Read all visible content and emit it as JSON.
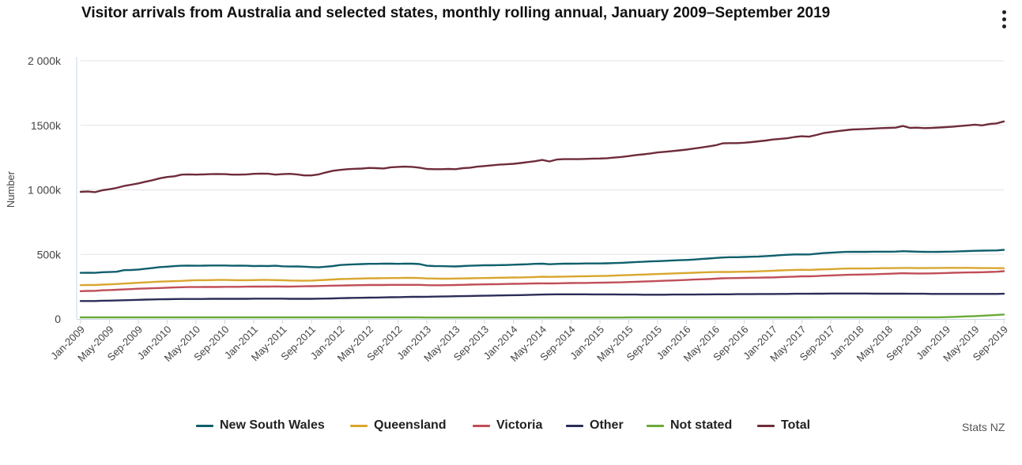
{
  "menu_icon": "vertical-ellipsis-icon",
  "credit": "Stats NZ",
  "chart_data": {
    "type": "line",
    "title": "Visitor arrivals from Australia and selected states, monthly rolling annual, January 2009–September 2019",
    "xlabel": "",
    "ylabel": "Number",
    "ylim": [
      0,
      2000000
    ],
    "yticks": [
      0,
      500000,
      1000000,
      1500000,
      2000000
    ],
    "ytick_labels": [
      "0",
      "500k",
      "1 000k",
      "1500k",
      "2 000k"
    ],
    "grid": true,
    "legend_position": "bottom",
    "start": "2009-01",
    "end": "2019-09",
    "months": 129,
    "x_tick_labels": [
      "Jan-2009",
      "May-2009",
      "Sep-2009",
      "Jan-2010",
      "May-2010",
      "Sep-2010",
      "Jan-2011",
      "May-2011",
      "Sep-2011",
      "Jan-2012",
      "May-2012",
      "Sep-2012",
      "Jan-2013",
      "May-2013",
      "Sep-2013",
      "Jan-2014",
      "May-2014",
      "Sep-2014",
      "Jan-2015",
      "May-2015",
      "Sep-2015",
      "Jan-2016",
      "May-2016",
      "Sep-2016",
      "Jan-2017",
      "May-2017",
      "Sep-2017",
      "Jan-2018",
      "May-2018",
      "Sep-2018",
      "Jan-2019",
      "May-2019",
      "Sep-2019"
    ],
    "series": [
      {
        "name": "New South Wales",
        "color": "#0f5f6b",
        "values": [
          357000,
          358000,
          357000,
          362000,
          363000,
          366000,
          378000,
          379000,
          383000,
          389000,
          395000,
          402000,
          405000,
          409000,
          412000,
          413000,
          412000,
          413000,
          414000,
          414000,
          414000,
          412000,
          413000,
          412000,
          410000,
          411000,
          410000,
          412000,
          408000,
          406000,
          407000,
          405000,
          402000,
          400000,
          405000,
          410000,
          418000,
          421000,
          423000,
          425000,
          427000,
          427000,
          429000,
          428000,
          427000,
          429000,
          428000,
          425000,
          412000,
          410000,
          409000,
          408000,
          407000,
          410000,
          412000,
          414000,
          416000,
          416000,
          417000,
          418000,
          420000,
          422000,
          424000,
          427000,
          428000,
          424000,
          426000,
          428000,
          428000,
          429000,
          430000,
          430000,
          430000,
          431000,
          433000,
          435000,
          438000,
          441000,
          443000,
          446000,
          448000,
          450000,
          453000,
          455000,
          457000,
          460000,
          464000,
          468000,
          472000,
          476000,
          478000,
          478000,
          480000,
          482000,
          484000,
          487000,
          490000,
          494000,
          497000,
          500000,
          500000,
          500000,
          505000,
          510000,
          513000,
          516000,
          519000,
          520000,
          520000,
          520000,
          521000,
          521000,
          521000,
          522000,
          525000,
          523000,
          521000,
          520000,
          519000,
          520000,
          521000,
          522000,
          524000,
          526000,
          528000,
          529000,
          530000,
          531000,
          535000
        ]
      },
      {
        "name": "Queensland",
        "color": "#d9a62e",
        "values": [
          262000,
          263000,
          263000,
          266000,
          268000,
          271000,
          274000,
          277000,
          280000,
          283000,
          286000,
          289000,
          291000,
          293000,
          295000,
          298000,
          300000,
          300000,
          301000,
          302000,
          302000,
          301000,
          300000,
          300000,
          301000,
          302000,
          302000,
          301000,
          300000,
          298000,
          297000,
          296000,
          297000,
          300000,
          303000,
          306000,
          309000,
          310000,
          312000,
          313000,
          315000,
          315000,
          316000,
          317000,
          317000,
          318000,
          318000,
          317000,
          314000,
          313000,
          312000,
          312000,
          313000,
          314000,
          315000,
          316000,
          317000,
          318000,
          319000,
          320000,
          321000,
          322000,
          323000,
          325000,
          327000,
          326000,
          327000,
          328000,
          329000,
          330000,
          331000,
          332000,
          333000,
          334000,
          336000,
          338000,
          340000,
          342000,
          344000,
          346000,
          348000,
          350000,
          352000,
          354000,
          356000,
          358000,
          360000,
          362000,
          363000,
          364000,
          364000,
          365000,
          366000,
          367000,
          369000,
          371000,
          374000,
          376000,
          378000,
          380000,
          381000,
          380000,
          382000,
          384000,
          386000,
          388000,
          390000,
          391000,
          391000,
          391000,
          392000,
          393000,
          393000,
          394000,
          395000,
          395000,
          394000,
          394000,
          395000,
          395000,
          396000,
          396000,
          396000,
          396000,
          395000,
          394000,
          394000,
          393000,
          393000
        ]
      },
      {
        "name": "Victoria",
        "color": "#c04e57",
        "values": [
          215000,
          217000,
          218000,
          222000,
          224000,
          226000,
          229000,
          231000,
          234000,
          236000,
          238000,
          240000,
          242000,
          244000,
          246000,
          247000,
          247000,
          248000,
          248000,
          248000,
          249000,
          249000,
          249000,
          250000,
          251000,
          251000,
          251000,
          252000,
          251000,
          251000,
          252000,
          253000,
          254000,
          255000,
          256000,
          258000,
          259000,
          260000,
          261000,
          262000,
          263000,
          263000,
          263000,
          264000,
          264000,
          264000,
          264000,
          264000,
          262000,
          261000,
          261000,
          262000,
          263000,
          264000,
          266000,
          267000,
          268000,
          269000,
          270000,
          271000,
          272000,
          273000,
          274000,
          275000,
          276000,
          275000,
          276000,
          277000,
          278000,
          279000,
          279000,
          280000,
          281000,
          282000,
          283000,
          284000,
          286000,
          288000,
          290000,
          292000,
          294000,
          296000,
          298000,
          300000,
          302000,
          305000,
          307000,
          309000,
          312000,
          315000,
          316000,
          317000,
          318000,
          319000,
          320000,
          321000,
          322000,
          324000,
          326000,
          328000,
          330000,
          330000,
          332000,
          335000,
          337000,
          339000,
          341000,
          343000,
          344000,
          345000,
          346000,
          348000,
          350000,
          352000,
          354000,
          353000,
          352000,
          352000,
          353000,
          354000,
          356000,
          358000,
          359000,
          360000,
          361000,
          362000,
          364000,
          366000,
          370000
        ]
      },
      {
        "name": "Other",
        "color": "#2c2d58",
        "values": [
          139000,
          139000,
          139000,
          141000,
          142000,
          143000,
          145000,
          146000,
          148000,
          150000,
          151000,
          152000,
          153000,
          154000,
          155000,
          155000,
          155000,
          155000,
          156000,
          156000,
          156000,
          156000,
          156000,
          156000,
          157000,
          157000,
          157000,
          157000,
          157000,
          156000,
          156000,
          156000,
          156000,
          157000,
          158000,
          159000,
          161000,
          162000,
          163000,
          164000,
          165000,
          166000,
          167000,
          168000,
          169000,
          170000,
          171000,
          171000,
          172000,
          173000,
          174000,
          175000,
          176000,
          177000,
          178000,
          179000,
          180000,
          181000,
          182000,
          183000,
          184000,
          185000,
          186000,
          188000,
          189000,
          190000,
          191000,
          191000,
          191000,
          191000,
          191000,
          190000,
          190000,
          190000,
          190000,
          189000,
          189000,
          189000,
          188000,
          188000,
          188000,
          188000,
          189000,
          189000,
          189000,
          189000,
          190000,
          190000,
          191000,
          191000,
          191000,
          192000,
          192000,
          192000,
          193000,
          193000,
          193000,
          194000,
          194000,
          195000,
          195000,
          195000,
          196000,
          196000,
          197000,
          197000,
          197000,
          197000,
          197000,
          197000,
          196000,
          196000,
          196000,
          196000,
          196000,
          195000,
          195000,
          195000,
          194000,
          194000,
          194000,
          194000,
          194000,
          194000,
          194000,
          194000,
          194000,
          194000,
          195000
        ]
      },
      {
        "name": "Not stated",
        "color": "#6aaa3a",
        "values": [
          12000,
          12000,
          12000,
          12000,
          12000,
          12000,
          12000,
          12000,
          12000,
          12000,
          12000,
          12000,
          12000,
          12000,
          12000,
          12000,
          12000,
          12000,
          12000,
          12000,
          12000,
          12000,
          12000,
          12000,
          12000,
          12000,
          12000,
          12000,
          12000,
          12000,
          12000,
          12000,
          12000,
          12000,
          12000,
          12000,
          12000,
          12000,
          12000,
          12000,
          12000,
          12000,
          12000,
          12000,
          12000,
          12000,
          12000,
          12000,
          11000,
          11000,
          11000,
          11000,
          11000,
          11000,
          11000,
          11000,
          11000,
          11000,
          11000,
          11000,
          11000,
          11000,
          11000,
          11000,
          11000,
          11000,
          11000,
          11000,
          11000,
          11000,
          11000,
          11000,
          11000,
          11000,
          11000,
          11000,
          12000,
          12000,
          12000,
          12000,
          12000,
          12000,
          12000,
          12000,
          12000,
          12000,
          12000,
          12000,
          12000,
          12000,
          12000,
          12000,
          12000,
          12000,
          12000,
          12000,
          12000,
          12000,
          12000,
          12000,
          12000,
          12000,
          13000,
          13000,
          13000,
          13000,
          13000,
          13000,
          13000,
          13000,
          13000,
          13000,
          13000,
          13000,
          13000,
          13000,
          13000,
          13000,
          13000,
          13000,
          14000,
          16000,
          18000,
          20000,
          22000,
          25000,
          28000,
          31000,
          34000
        ]
      },
      {
        "name": "Total",
        "color": "#6e2c3a",
        "values": [
          985000,
          987000,
          982000,
          997000,
          1005000,
          1015000,
          1030000,
          1040000,
          1050000,
          1063000,
          1075000,
          1090000,
          1100000,
          1105000,
          1118000,
          1120000,
          1118000,
          1120000,
          1122000,
          1123000,
          1122000,
          1118000,
          1118000,
          1120000,
          1124000,
          1126000,
          1125000,
          1118000,
          1122000,
          1124000,
          1120000,
          1112000,
          1112000,
          1120000,
          1135000,
          1148000,
          1155000,
          1160000,
          1163000,
          1165000,
          1170000,
          1168000,
          1166000,
          1175000,
          1178000,
          1180000,
          1178000,
          1172000,
          1162000,
          1160000,
          1160000,
          1162000,
          1160000,
          1168000,
          1172000,
          1180000,
          1185000,
          1190000,
          1195000,
          1198000,
          1202000,
          1208000,
          1215000,
          1222000,
          1232000,
          1220000,
          1235000,
          1238000,
          1238000,
          1238000,
          1240000,
          1242000,
          1243000,
          1245000,
          1250000,
          1255000,
          1262000,
          1270000,
          1275000,
          1282000,
          1290000,
          1295000,
          1300000,
          1306000,
          1312000,
          1320000,
          1328000,
          1336000,
          1345000,
          1360000,
          1362000,
          1362000,
          1365000,
          1370000,
          1376000,
          1382000,
          1390000,
          1395000,
          1400000,
          1410000,
          1415000,
          1412000,
          1425000,
          1440000,
          1448000,
          1455000,
          1462000,
          1468000,
          1470000,
          1472000,
          1475000,
          1478000,
          1480000,
          1482000,
          1495000,
          1480000,
          1482000,
          1478000,
          1480000,
          1483000,
          1486000,
          1490000,
          1495000,
          1500000,
          1505000,
          1500000,
          1510000,
          1515000,
          1530000
        ]
      }
    ]
  }
}
